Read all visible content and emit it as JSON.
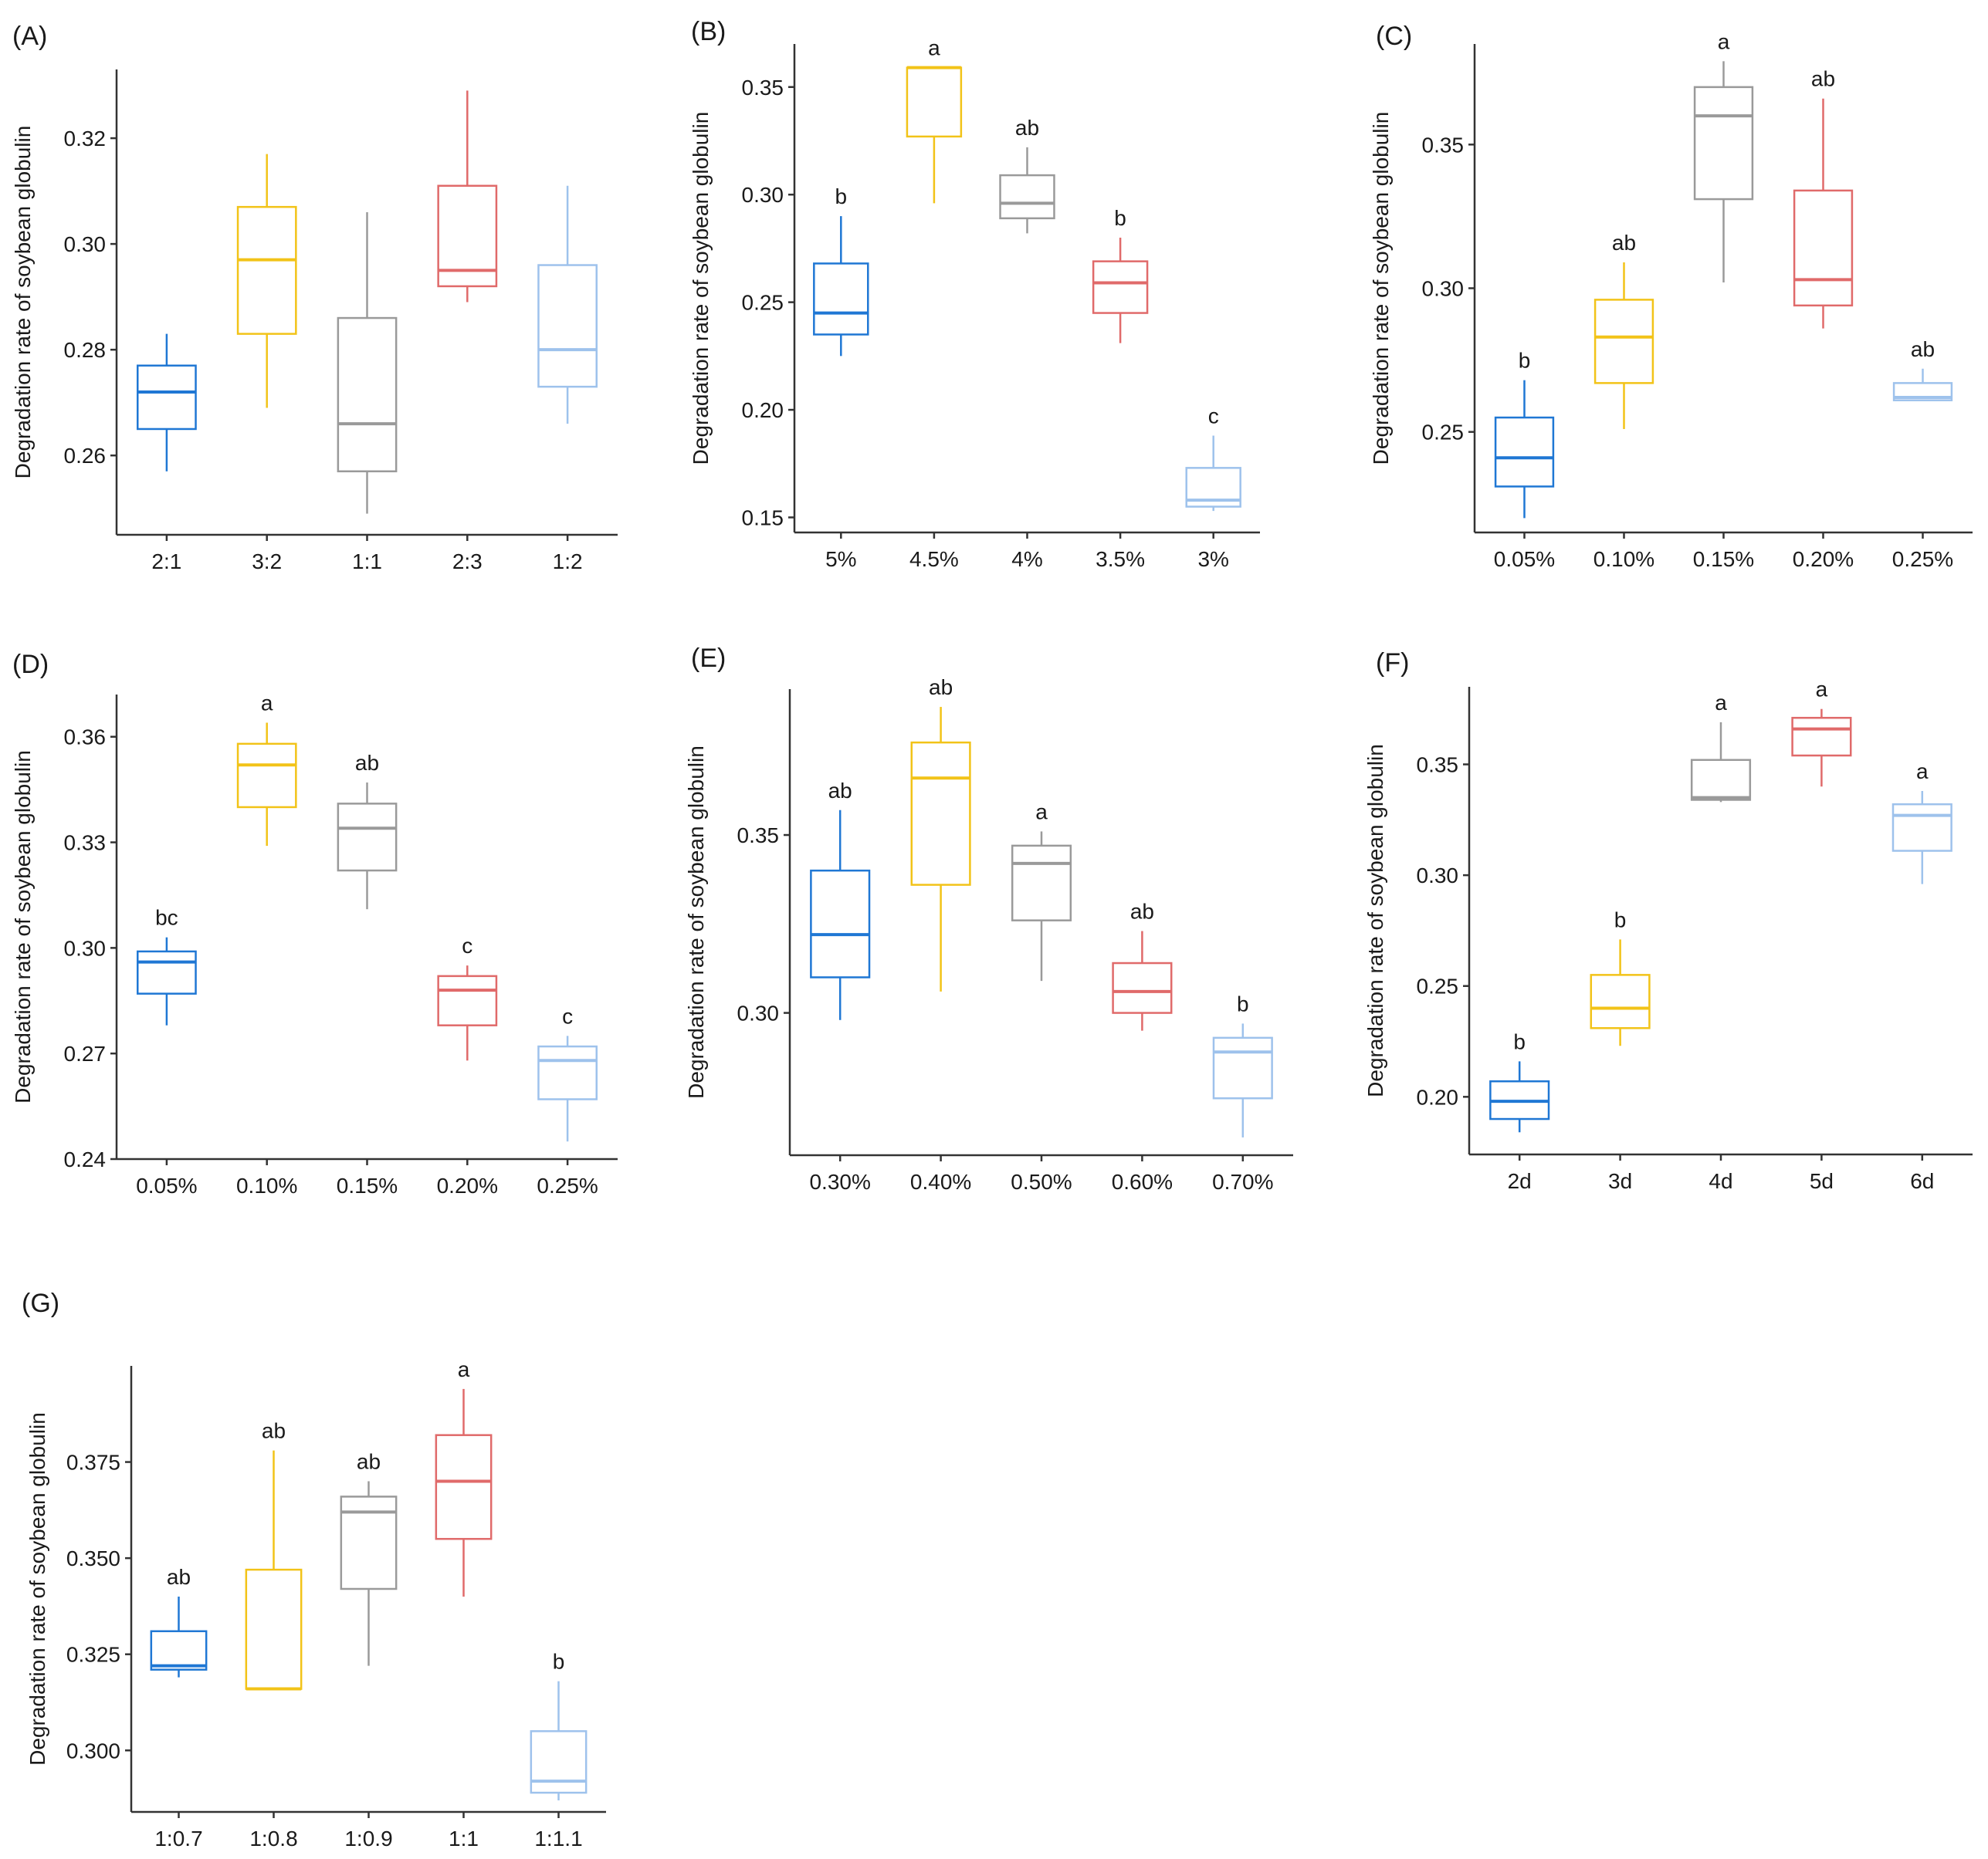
{
  "series_colors": [
    "#1f77d4",
    "#f2c318",
    "#9a9a9a",
    "#e06a6a",
    "#9ec2ec"
  ],
  "chart_data": [
    {
      "id": "A",
      "panel_label": "(A)",
      "type": "box",
      "ylabel": "Degradation rate of soybean globulin",
      "ylim": [
        0.245,
        0.333
      ],
      "yticks": [
        0.26,
        0.28,
        0.3,
        0.32
      ],
      "yticklabels": [
        "0.26",
        "0.28",
        "0.30",
        "0.32"
      ],
      "categories": [
        "2:1",
        "3:2",
        "1:1",
        "2:3",
        "1:2"
      ],
      "boxes": [
        {
          "min": 0.257,
          "q1": 0.265,
          "median": 0.272,
          "q3": 0.277,
          "max": 0.283
        },
        {
          "min": 0.269,
          "q1": 0.283,
          "median": 0.297,
          "q3": 0.307,
          "max": 0.317
        },
        {
          "min": 0.249,
          "q1": 0.257,
          "median": 0.266,
          "q3": 0.286,
          "max": 0.306
        },
        {
          "min": 0.289,
          "q1": 0.292,
          "median": 0.295,
          "q3": 0.311,
          "max": 0.329
        },
        {
          "min": 0.266,
          "q1": 0.273,
          "median": 0.28,
          "q3": 0.296,
          "max": 0.311
        }
      ],
      "significance": [
        "",
        "",
        "",
        "",
        ""
      ]
    },
    {
      "id": "B",
      "panel_label": "(B)",
      "type": "box",
      "ylabel": "Degradation rate of soybean globulin",
      "ylim": [
        0.143,
        0.37
      ],
      "yticks": [
        0.15,
        0.2,
        0.25,
        0.3,
        0.35
      ],
      "yticklabels": [
        "0.15",
        "0.20",
        "0.25",
        "0.30",
        "0.35"
      ],
      "categories": [
        "5%",
        "4.5%",
        "4%",
        "3.5%",
        "3%"
      ],
      "boxes": [
        {
          "min": 0.225,
          "q1": 0.235,
          "median": 0.245,
          "q3": 0.268,
          "max": 0.29
        },
        {
          "min": 0.296,
          "q1": 0.327,
          "median": 0.359,
          "q3": 0.359,
          "max": 0.359
        },
        {
          "min": 0.282,
          "q1": 0.289,
          "median": 0.296,
          "q3": 0.309,
          "max": 0.322
        },
        {
          "min": 0.231,
          "q1": 0.245,
          "median": 0.259,
          "q3": 0.269,
          "max": 0.28
        },
        {
          "min": 0.153,
          "q1": 0.155,
          "median": 0.158,
          "q3": 0.173,
          "max": 0.188
        }
      ],
      "significance": [
        "b",
        "a",
        "ab",
        "b",
        "c"
      ]
    },
    {
      "id": "C",
      "panel_label": "(C)",
      "type": "box",
      "ylabel": "Degradation rate of soybean globulin",
      "ylim": [
        0.215,
        0.385
      ],
      "yticks": [
        0.25,
        0.3,
        0.35
      ],
      "yticklabels": [
        "0.25",
        "0.30",
        "0.35"
      ],
      "categories": [
        "0.05%",
        "0.10%",
        "0.15%",
        "0.20%",
        "0.25%"
      ],
      "boxes": [
        {
          "min": 0.22,
          "q1": 0.231,
          "median": 0.241,
          "q3": 0.255,
          "max": 0.268
        },
        {
          "min": 0.251,
          "q1": 0.267,
          "median": 0.283,
          "q3": 0.296,
          "max": 0.309
        },
        {
          "min": 0.302,
          "q1": 0.331,
          "median": 0.36,
          "q3": 0.37,
          "max": 0.379
        },
        {
          "min": 0.286,
          "q1": 0.294,
          "median": 0.303,
          "q3": 0.334,
          "max": 0.366
        },
        {
          "min": 0.261,
          "q1": 0.261,
          "median": 0.262,
          "q3": 0.267,
          "max": 0.272
        }
      ],
      "significance": [
        "b",
        "ab",
        "a",
        "ab",
        "ab"
      ]
    },
    {
      "id": "D",
      "panel_label": "(D)",
      "type": "box",
      "ylabel": "Degradation rate of soybean globulin",
      "ylim": [
        0.24,
        0.372
      ],
      "yticks": [
        0.24,
        0.27,
        0.3,
        0.33,
        0.36
      ],
      "yticklabels": [
        "0.24",
        "0.27",
        "0.30",
        "0.33",
        "0.36"
      ],
      "categories": [
        "0.05%",
        "0.10%",
        "0.15%",
        "0.20%",
        "0.25%"
      ],
      "boxes": [
        {
          "min": 0.278,
          "q1": 0.287,
          "median": 0.296,
          "q3": 0.299,
          "max": 0.303
        },
        {
          "min": 0.329,
          "q1": 0.34,
          "median": 0.352,
          "q3": 0.358,
          "max": 0.364
        },
        {
          "min": 0.311,
          "q1": 0.322,
          "median": 0.334,
          "q3": 0.341,
          "max": 0.347
        },
        {
          "min": 0.268,
          "q1": 0.278,
          "median": 0.288,
          "q3": 0.292,
          "max": 0.295
        },
        {
          "min": 0.245,
          "q1": 0.257,
          "median": 0.268,
          "q3": 0.272,
          "max": 0.275
        }
      ],
      "significance": [
        "bc",
        "a",
        "ab",
        "c",
        "c"
      ]
    },
    {
      "id": "E",
      "panel_label": "(E)",
      "type": "box",
      "ylabel": "Degradation rate of soybean globulin",
      "ylim": [
        0.26,
        0.391
      ],
      "yticks": [
        0.3,
        0.35
      ],
      "yticklabels": [
        "0.30",
        "0.35"
      ],
      "categories": [
        "0.30%",
        "0.40%",
        "0.50%",
        "0.60%",
        "0.70%"
      ],
      "boxes": [
        {
          "min": 0.298,
          "q1": 0.31,
          "median": 0.322,
          "q3": 0.34,
          "max": 0.357
        },
        {
          "min": 0.306,
          "q1": 0.336,
          "median": 0.366,
          "q3": 0.376,
          "max": 0.386
        },
        {
          "min": 0.309,
          "q1": 0.326,
          "median": 0.342,
          "q3": 0.347,
          "max": 0.351
        },
        {
          "min": 0.295,
          "q1": 0.3,
          "median": 0.306,
          "q3": 0.314,
          "max": 0.323
        },
        {
          "min": 0.265,
          "q1": 0.276,
          "median": 0.289,
          "q3": 0.293,
          "max": 0.297
        }
      ],
      "significance": [
        "ab",
        "ab",
        "a",
        "ab",
        "b"
      ]
    },
    {
      "id": "F",
      "panel_label": "(F)",
      "type": "box",
      "ylabel": "Degradation rate of soybean globulin",
      "ylim": [
        0.174,
        0.385
      ],
      "yticks": [
        0.2,
        0.25,
        0.3,
        0.35
      ],
      "yticklabels": [
        "0.20",
        "0.25",
        "0.30",
        "0.35"
      ],
      "categories": [
        "2d",
        "3d",
        "4d",
        "5d",
        "6d"
      ],
      "boxes": [
        {
          "min": 0.184,
          "q1": 0.19,
          "median": 0.198,
          "q3": 0.207,
          "max": 0.216
        },
        {
          "min": 0.223,
          "q1": 0.231,
          "median": 0.24,
          "q3": 0.255,
          "max": 0.271
        },
        {
          "min": 0.333,
          "q1": 0.334,
          "median": 0.335,
          "q3": 0.352,
          "max": 0.369
        },
        {
          "min": 0.34,
          "q1": 0.354,
          "median": 0.366,
          "q3": 0.371,
          "max": 0.375
        },
        {
          "min": 0.296,
          "q1": 0.311,
          "median": 0.327,
          "q3": 0.332,
          "max": 0.338
        }
      ],
      "significance": [
        "b",
        "b",
        "a",
        "a",
        "a"
      ]
    },
    {
      "id": "G",
      "panel_label": "(G)",
      "type": "box",
      "ylabel": "Degradation rate of soybean globulin",
      "ylim": [
        0.284,
        0.4
      ],
      "yticks": [
        0.3,
        0.325,
        0.35,
        0.375
      ],
      "yticklabels": [
        "0.300",
        "0.325",
        "0.350",
        "0.375"
      ],
      "categories": [
        "1:0.7",
        "1:0.8",
        "1:0.9",
        "1:1",
        "1:1.1"
      ],
      "boxes": [
        {
          "min": 0.319,
          "q1": 0.321,
          "median": 0.322,
          "q3": 0.331,
          "max": 0.34
        },
        {
          "min": 0.316,
          "q1": 0.316,
          "median": 0.316,
          "q3": 0.347,
          "max": 0.378
        },
        {
          "min": 0.322,
          "q1": 0.342,
          "median": 0.362,
          "q3": 0.366,
          "max": 0.37
        },
        {
          "min": 0.34,
          "q1": 0.355,
          "median": 0.37,
          "q3": 0.382,
          "max": 0.394
        },
        {
          "min": 0.287,
          "q1": 0.289,
          "median": 0.292,
          "q3": 0.305,
          "max": 0.318
        }
      ],
      "significance": [
        "ab",
        "ab",
        "ab",
        "a",
        "b"
      ]
    }
  ]
}
